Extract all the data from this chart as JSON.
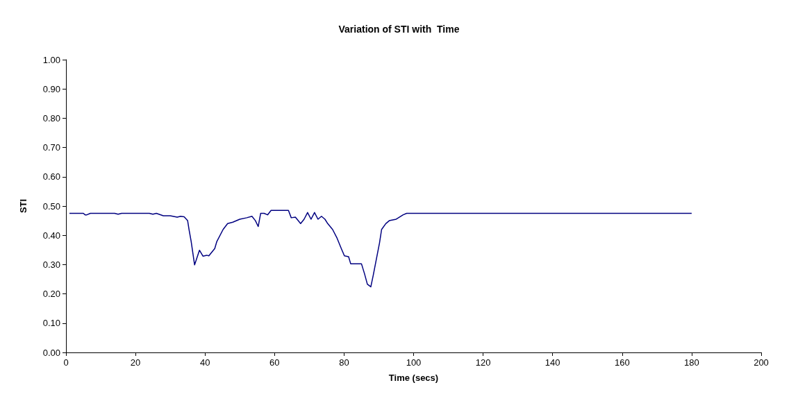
{
  "chart_data": {
    "type": "line",
    "title": "Variation of STI with  Time",
    "xlabel": "Time (secs)",
    "ylabel": "STI",
    "x": [
      1,
      5,
      5.5,
      6,
      7,
      14,
      15,
      16,
      24,
      25,
      26,
      28,
      30,
      32,
      33,
      34,
      35,
      35.4,
      36,
      37,
      38.4,
      39.4,
      40.5,
      41.1,
      42.8,
      43.4,
      45.2,
      46.5,
      48,
      50,
      52,
      53.5,
      54.5,
      55.3,
      56,
      57,
      58,
      59,
      62,
      64,
      64.8,
      66,
      67.5,
      68.5,
      69.5,
      70.5,
      71.5,
      72.5,
      73.5,
      74.5,
      75.3,
      76.7,
      78,
      79.2,
      80.1,
      81.3,
      81.9,
      85,
      85.9,
      86.7,
      87.7,
      88.4,
      90.2,
      90.8,
      92,
      93,
      95,
      97,
      98,
      120,
      150,
      180
    ],
    "series": [
      {
        "color": "#000080",
        "values": [
          0.475,
          0.475,
          0.47,
          0.47,
          0.475,
          0.475,
          0.472,
          0.475,
          0.475,
          0.472,
          0.475,
          0.467,
          0.467,
          0.462,
          0.465,
          0.463,
          0.45,
          0.42,
          0.38,
          0.299,
          0.349,
          0.329,
          0.332,
          0.33,
          0.355,
          0.379,
          0.42,
          0.44,
          0.445,
          0.455,
          0.46,
          0.465,
          0.45,
          0.43,
          0.475,
          0.475,
          0.47,
          0.485,
          0.485,
          0.485,
          0.46,
          0.462,
          0.44,
          0.455,
          0.478,
          0.455,
          0.478,
          0.455,
          0.465,
          0.455,
          0.44,
          0.42,
          0.39,
          0.355,
          0.33,
          0.327,
          0.303,
          0.303,
          0.268,
          0.233,
          0.224,
          0.264,
          0.374,
          0.42,
          0.44,
          0.45,
          0.455,
          0.47,
          0.475,
          0.475,
          0.475,
          0.475
        ]
      }
    ],
    "xlim": [
      0,
      200
    ],
    "xticks": [
      0,
      20,
      40,
      60,
      80,
      100,
      120,
      140,
      160,
      180,
      200
    ],
    "ylim": [
      0,
      1
    ],
    "yticks": [
      {
        "value": 0,
        "label": "0.00"
      },
      {
        "value": 0.1,
        "label": "0.10"
      },
      {
        "value": 0.2,
        "label": "0.20"
      },
      {
        "value": 0.3,
        "label": "0.30"
      },
      {
        "value": 0.4,
        "label": "0.40"
      },
      {
        "value": 0.5,
        "label": "0.50"
      },
      {
        "value": 0.6,
        "label": "0.60"
      },
      {
        "value": 0.7,
        "label": "0.70"
      },
      {
        "value": 0.8,
        "label": "0.80"
      },
      {
        "value": 0.9,
        "label": "0.90"
      },
      {
        "value": 1,
        "label": "1.00"
      }
    ],
    "grid": false,
    "marker": "none",
    "line_style": "solid"
  }
}
